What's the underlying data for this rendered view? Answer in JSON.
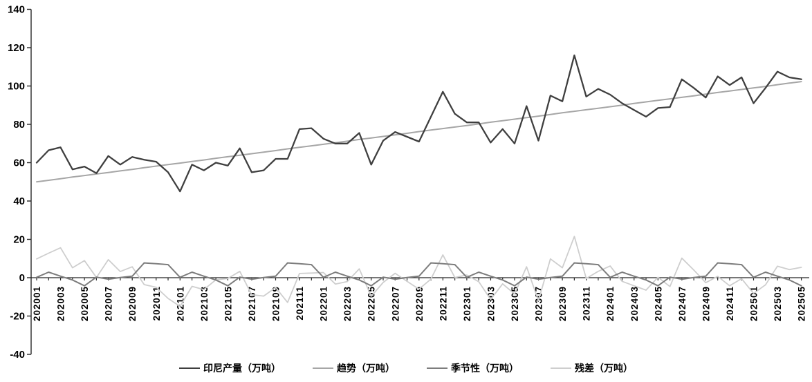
{
  "chart_data": {
    "type": "line",
    "title": "",
    "xlabel": "",
    "ylabel": "",
    "ylim": [
      -40,
      140
    ],
    "y_ticks": [
      140,
      120,
      100,
      80,
      60,
      40,
      20,
      0,
      -20,
      -40
    ],
    "x_tick_label_every": 2,
    "grid": false,
    "legend_position": "bottom-center",
    "x": [
      "202001",
      "202002",
      "202003",
      "202004",
      "202005",
      "202006",
      "202007",
      "202008",
      "202009",
      "202010",
      "202011",
      "202012",
      "202101",
      "202102",
      "202103",
      "202104",
      "202105",
      "202106",
      "202107",
      "202108",
      "202109",
      "202110",
      "202111",
      "202112",
      "202201",
      "202202",
      "202203",
      "202204",
      "202205",
      "202206",
      "202207",
      "202208",
      "202209",
      "202210",
      "202211",
      "202212",
      "202301",
      "202302",
      "202303",
      "202304",
      "202305",
      "202306",
      "202307",
      "202308",
      "202309",
      "202310",
      "202311",
      "202312",
      "202401",
      "202402",
      "202403",
      "202404",
      "202405",
      "202406",
      "202407",
      "202408",
      "202409",
      "202410",
      "202411",
      "202412",
      "202501",
      "202502",
      "202503",
      "202504",
      "202505"
    ],
    "series": [
      {
        "name": "印尼产量（万吨）",
        "color": "#3f3f3f",
        "line_width": 2.3,
        "values": [
          60,
          66.5,
          68,
          56.5,
          58,
          54.5,
          63.5,
          59,
          63,
          61.5,
          60.5,
          55,
          45,
          59,
          56,
          60,
          58.5,
          67.5,
          55,
          56,
          62,
          62,
          77.5,
          78,
          72.5,
          70,
          70,
          75.5,
          59,
          71.5,
          76,
          73.5,
          71,
          84,
          97,
          85.5,
          81,
          81,
          70.5,
          77.5,
          70,
          89.5,
          71.5,
          95,
          92,
          116,
          94.5,
          98.5,
          95.5,
          91,
          87.5,
          84,
          88.5,
          89,
          103.5,
          99,
          94,
          105,
          100.5,
          104.5,
          91,
          99,
          107.5,
          104.5,
          103.5
        ]
      },
      {
        "name": "趋势（万吨）",
        "color": "#a6a6a6",
        "line_width": 2,
        "values": [
          50,
          50.8,
          51.6,
          52.5,
          53.3,
          54.1,
          54.9,
          55.7,
          56.5,
          57.4,
          58.2,
          59,
          59.8,
          60.6,
          61.4,
          62.3,
          63.1,
          63.9,
          64.7,
          65.5,
          66.3,
          67.2,
          68,
          68.8,
          69.6,
          70.4,
          71.2,
          72.1,
          72.9,
          73.7,
          74.5,
          75.3,
          76.2,
          77,
          77.8,
          78.6,
          79.4,
          80.2,
          81.1,
          81.9,
          82.7,
          83.5,
          84.3,
          85.1,
          86,
          86.8,
          87.6,
          88.4,
          89.2,
          90,
          90.9,
          91.7,
          92.5,
          93.3,
          94.1,
          94.9,
          95.8,
          96.6,
          97.4,
          98.2,
          99,
          99.8,
          100.7,
          101.5,
          102.3
        ]
      },
      {
        "name": "季节性（万吨）",
        "color": "#7d7d7d",
        "line_width": 2,
        "values": [
          0.2,
          2.9,
          0.8,
          -1.2,
          -4.2,
          0.3,
          -0.8,
          0.1,
          0.8,
          7.7,
          7.3,
          6.8,
          0.2,
          2.9,
          0.8,
          -1.2,
          -4.2,
          0.3,
          -0.8,
          0.1,
          0.8,
          7.7,
          7.3,
          6.8,
          0.2,
          2.9,
          0.8,
          -1.2,
          -4.2,
          0.3,
          -0.8,
          0.1,
          0.8,
          7.7,
          7.3,
          6.8,
          0.2,
          2.9,
          0.8,
          -1.2,
          -4.2,
          0.3,
          -0.8,
          0.1,
          0.8,
          7.7,
          7.3,
          6.8,
          0.2,
          2.9,
          0.8,
          -1.2,
          -4.2,
          0.3,
          -0.8,
          0.1,
          0.8,
          7.7,
          7.3,
          6.8,
          0.2,
          2.9,
          0.8,
          -1.2,
          -4.2
        ]
      },
      {
        "name": "残差（万吨）",
        "color": "#cecece",
        "line_width": 1.8,
        "values": [
          9.8,
          12.8,
          15.6,
          5.2,
          8.9,
          0.1,
          9.4,
          3.2,
          5.7,
          -3.6,
          -5,
          -10.8,
          -15,
          -4.5,
          -6.2,
          -1.1,
          -0.4,
          3.3,
          -8.9,
          -9.6,
          -5.1,
          -12.9,
          2.2,
          2.4,
          2.7,
          -3.3,
          -2,
          4.6,
          -9.7,
          -2.5,
          2.3,
          -1.9,
          -6,
          -0.7,
          11.9,
          0.1,
          1.4,
          -2.1,
          -11.4,
          -3.2,
          -8.5,
          5.7,
          -12,
          9.8,
          5.2,
          21.5,
          -0.4,
          3.3,
          6.1,
          -1.9,
          -4.2,
          -6.5,
          0.2,
          -4.6,
          10.2,
          4,
          -2.6,
          0.7,
          -4.2,
          -0.5,
          -8.2,
          -3.7,
          6,
          4.2,
          5.4
        ]
      }
    ],
    "axis_color": "#262626"
  }
}
